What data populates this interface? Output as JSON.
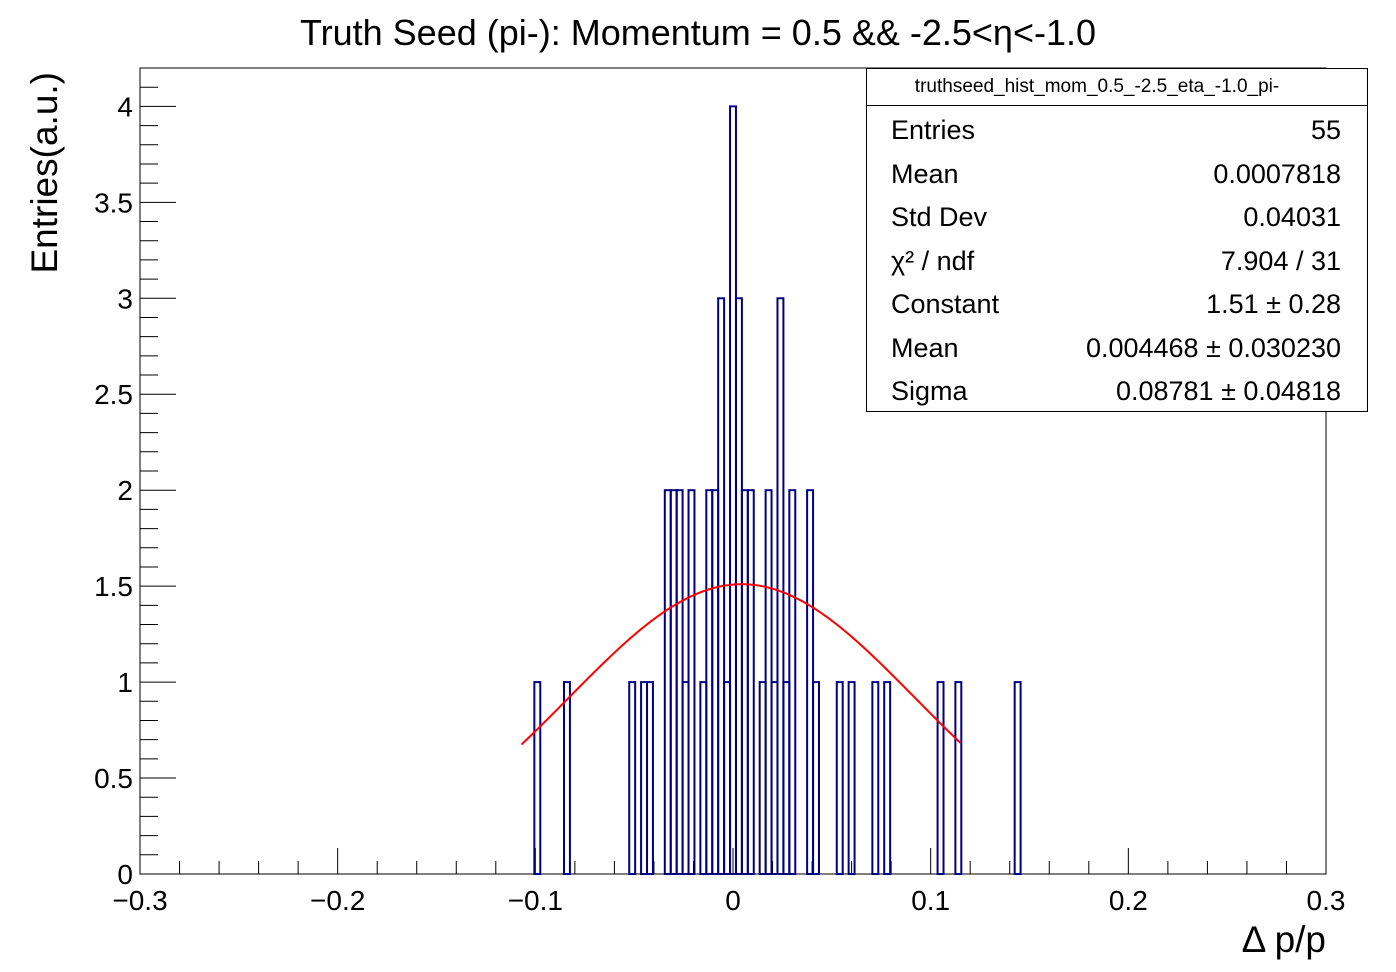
{
  "chart_data": {
    "type": "bar",
    "title": "Truth Seed (pi-): Momentum = 0.5 && -2.5<η<-1.0",
    "xlabel": "Δ p/p",
    "ylabel": "Entries(a.u.)",
    "xlim": [
      -0.3,
      0.3
    ],
    "ylim": [
      0,
      4.2
    ],
    "xticks": [
      "−0.3",
      "−0.2",
      "−0.1",
      "0",
      "0.1",
      "0.2",
      "0.3"
    ],
    "yticks": [
      "0",
      "0.5",
      "1",
      "1.5",
      "2",
      "2.5",
      "3",
      "3.5",
      "4"
    ],
    "bin_width": 0.003,
    "bins": [
      {
        "x": -0.099,
        "y": 1
      },
      {
        "x": -0.084,
        "y": 1
      },
      {
        "x": -0.051,
        "y": 1
      },
      {
        "x": -0.045,
        "y": 1
      },
      {
        "x": -0.042,
        "y": 1
      },
      {
        "x": -0.033,
        "y": 2
      },
      {
        "x": -0.03,
        "y": 2
      },
      {
        "x": -0.027,
        "y": 2
      },
      {
        "x": -0.024,
        "y": 1
      },
      {
        "x": -0.021,
        "y": 2
      },
      {
        "x": -0.015,
        "y": 1
      },
      {
        "x": -0.012,
        "y": 2
      },
      {
        "x": -0.009,
        "y": 2
      },
      {
        "x": -0.006,
        "y": 3
      },
      {
        "x": -0.003,
        "y": 1
      },
      {
        "x": 0.0,
        "y": 4
      },
      {
        "x": 0.003,
        "y": 3
      },
      {
        "x": 0.006,
        "y": 2
      },
      {
        "x": 0.009,
        "y": 2
      },
      {
        "x": 0.015,
        "y": 1
      },
      {
        "x": 0.018,
        "y": 2
      },
      {
        "x": 0.021,
        "y": 1
      },
      {
        "x": 0.024,
        "y": 3
      },
      {
        "x": 0.027,
        "y": 1
      },
      {
        "x": 0.03,
        "y": 2
      },
      {
        "x": 0.039,
        "y": 2
      },
      {
        "x": 0.042,
        "y": 1
      },
      {
        "x": 0.054,
        "y": 1
      },
      {
        "x": 0.06,
        "y": 1
      },
      {
        "x": 0.072,
        "y": 1
      },
      {
        "x": 0.078,
        "y": 1
      },
      {
        "x": 0.105,
        "y": 1
      },
      {
        "x": 0.114,
        "y": 1
      },
      {
        "x": 0.144,
        "y": 1
      }
    ],
    "fit": {
      "function": "gaus",
      "constant": 1.51,
      "mean": 0.004468,
      "sigma": 0.08781,
      "range": [
        -0.107,
        0.115
      ]
    },
    "stats": {
      "name": "truthseed_hist_mom_0.5_-2.5_eta_-1.0_pi-",
      "rows": [
        {
          "label": "Entries",
          "value": "55"
        },
        {
          "label": "Mean",
          "value": "0.0007818"
        },
        {
          "label": "Std Dev",
          "value": "0.04031"
        },
        {
          "label": "χ² / ndf",
          "value": "7.904 / 31"
        },
        {
          "label": "Constant",
          "value": "1.51 ± 0.28"
        },
        {
          "label": "Mean",
          "value": "0.004468 ± 0.030230"
        },
        {
          "label": "Sigma",
          "value": "0.08781 ± 0.04818"
        }
      ]
    },
    "colors": {
      "histogram": "#000080",
      "fit": "#ff0000"
    },
    "grid": false,
    "legend": "top-right"
  }
}
